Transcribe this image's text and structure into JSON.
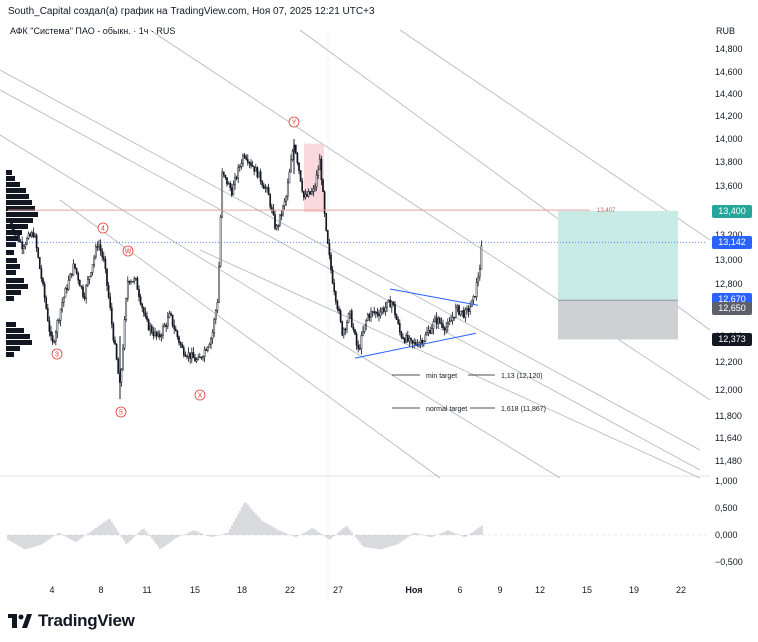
{
  "header": {
    "attribution": "South_Capital создал(а) график на TradingView.com, Ноя 07, 2025 12:21 UTC+3",
    "symbol": "АФК \"Система\" ПАО - обыкн. · 1ч · RUS",
    "currency": "RUB"
  },
  "footer": {
    "logo_text": "TradingView"
  },
  "colors": {
    "candle": "#131722",
    "resistance": "#e6a0a0",
    "channel": "#b2b5be",
    "triangle": "#2962ff",
    "target_zone": "#c9ebe5",
    "stop_zone": "#cfd0d3",
    "label_green": "#26a69a",
    "label_blue": "#2962ff",
    "label_black": "#131722",
    "label_gray": "#5d606b",
    "wave_marker": "#e53935"
  },
  "price_labels": [
    {
      "value": "13,400",
      "color": "#26a69a"
    },
    {
      "value": "13,142",
      "color": "#2962ff"
    },
    {
      "value": "12,670",
      "color": "#2962ff"
    },
    {
      "value": "12,650",
      "color": "#5d606b"
    },
    {
      "value": "12,373",
      "color": "#131722"
    }
  ],
  "resistance_label": "13,407",
  "annotations": {
    "min_target": "min target",
    "min_target_value": "1,13 (12,120)",
    "normal_target": "normal target",
    "normal_target_value": "1,618 (11,867)"
  },
  "wave_labels": [
    "4",
    "W",
    "3",
    "5",
    "X",
    "Y"
  ],
  "chart_data": [
    {
      "type": "line",
      "title": "",
      "x_ticks": [
        "4",
        "8",
        "11",
        "15",
        "18",
        "22",
        "27",
        "Ноя",
        "6",
        "9",
        "12",
        "15",
        "19",
        "22"
      ],
      "y_ticks": [
        "14,800",
        "14,600",
        "14,400",
        "14,200",
        "14,000",
        "13,800",
        "13,600",
        "13,400",
        "13,200",
        "13,000",
        "12,800",
        "12,600",
        "12,400",
        "12,200",
        "12,000",
        "11,800",
        "11,640",
        "11,480"
      ],
      "ylim": [
        11400,
        14900
      ],
      "series": [
        {
          "x": [
            "4",
            "8",
            "11",
            "15",
            "18",
            "22",
            "27",
            "Ноя",
            "6"
          ],
          "values": [
            12320,
            13100,
            12430,
            12150,
            13750,
            13980,
            12800,
            12350,
            13142
          ]
        }
      ],
      "levels": {
        "resistance": 13407,
        "last_price": 13142,
        "target": 13400,
        "entry": 12670,
        "stop": 12373
      }
    },
    {
      "type": "bar",
      "title": "",
      "y_ticks": [
        "1,000",
        "0,500",
        "0,000",
        "−0,500"
      ],
      "ylim": [
        -0.75,
        1.0
      ],
      "values": [
        -0.1,
        -0.3,
        -0.2,
        0.05,
        -0.15,
        0.1,
        0.35,
        -0.2,
        0.15,
        -0.3,
        -0.05,
        0.1,
        -0.05,
        0.05,
        0.7,
        0.3,
        0.1,
        -0.05,
        0.15,
        -0.1,
        0.2,
        -0.25,
        -0.3,
        -0.2,
        0.05,
        -0.05,
        0.1,
        -0.05,
        0.2
      ]
    }
  ]
}
